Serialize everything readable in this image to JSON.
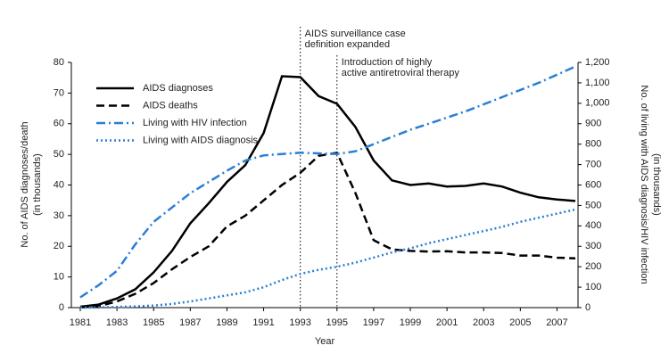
{
  "chart_data": {
    "type": "line",
    "x_label": "Year",
    "y_label": [
      "No. of AIDS diagnoses/death",
      "(in thousands)"
    ],
    "y2_label": [
      "No. of living with AIDS diagnosis/HIV infection",
      "(in thousands)"
    ],
    "x": [
      1981,
      1982,
      1983,
      1984,
      1985,
      1986,
      1987,
      1988,
      1989,
      1990,
      1991,
      1992,
      1993,
      1994,
      1995,
      1996,
      1997,
      1998,
      1999,
      2000,
      2001,
      2002,
      2003,
      2004,
      2005,
      2006,
      2007,
      2008
    ],
    "xlim": [
      1981,
      2008
    ],
    "xticks": [
      1981,
      1983,
      1985,
      1987,
      1989,
      1991,
      1993,
      1995,
      1997,
      1999,
      2001,
      2003,
      2005,
      2007
    ],
    "ylim": [
      0,
      80
    ],
    "yticks": [
      0,
      10,
      20,
      30,
      40,
      50,
      60,
      70,
      80
    ],
    "y2lim": [
      0,
      1200
    ],
    "y2ticks": [
      0,
      100,
      200,
      300,
      400,
      500,
      600,
      700,
      800,
      900,
      {
        "value": 1000,
        "label": "1,000"
      },
      {
        "value": 1100,
        "label": "1,100"
      },
      {
        "value": 1200,
        "label": "1,200"
      }
    ],
    "legend": "upper left",
    "series": [
      {
        "name": "AIDS diagnoses",
        "color": "#000000",
        "linestyle": "solid",
        "values": [
          0.3,
          1,
          3,
          6,
          11.5,
          18.5,
          27.5,
          34,
          41,
          46.5,
          57,
          75.5,
          75.2,
          69,
          66.5,
          59,
          48,
          41.5,
          40,
          40.5,
          39.5,
          39.7,
          40.5,
          39.5,
          37.5,
          36,
          35.3,
          34.8
        ]
      },
      {
        "name": "AIDS deaths",
        "color": "#000000",
        "linestyle": "dash",
        "values": [
          0.1,
          0.5,
          2,
          4.5,
          8,
          12.5,
          16.5,
          20,
          26.5,
          30,
          35,
          40,
          44,
          49.5,
          50.5,
          37.5,
          22,
          19,
          18.5,
          18.3,
          18.4,
          18,
          18,
          17.8,
          17,
          17,
          16.3,
          16.1
        ]
      },
      {
        "name": "Living with HIV infection",
        "color": "#2a7fd4",
        "linestyle": "dashdot",
        "axis": "y2",
        "values": [
          50,
          110,
          180,
          310,
          420,
          490,
          560,
          615,
          670,
          720,
          745,
          752,
          758,
          755,
          752,
          765,
          800,
          835,
          870,
          900,
          930,
          960,
          995,
          1030,
          1065,
          1100,
          1140,
          1180
        ]
      },
      {
        "name": "Living with AIDS diagnosis",
        "color": "#2a7fd4",
        "linestyle": "dot",
        "axis": "y2",
        "values": [
          0,
          1,
          3,
          6,
          10,
          18,
          30,
          45,
          60,
          75,
          100,
          135,
          165,
          185,
          200,
          220,
          245,
          270,
          290,
          315,
          335,
          355,
          375,
          395,
          420,
          440,
          460,
          480
        ]
      }
    ],
    "annotations": [
      {
        "x": 1993,
        "text": [
          "AIDS surveillance case",
          "definition expanded"
        ]
      },
      {
        "x": 1995,
        "text": [
          "Introduction of highly",
          "active antiretroviral therapy"
        ]
      }
    ]
  }
}
